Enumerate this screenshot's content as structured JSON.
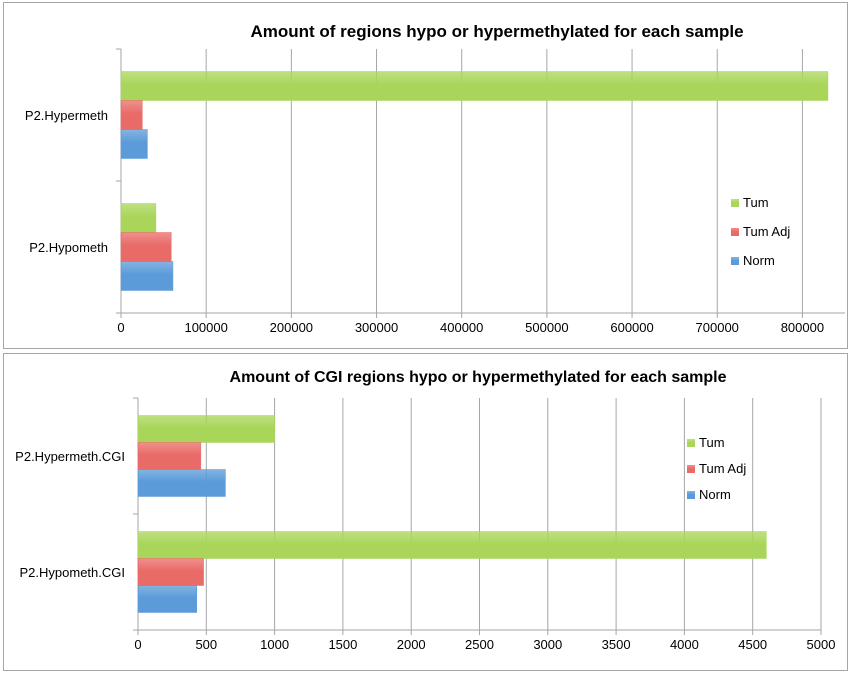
{
  "colors": {
    "Tum": "#a9d65a",
    "Tum Adj": "#e96b68",
    "Norm": "#5b9bd9",
    "grid": "#a6a6a6"
  },
  "chart_data": [
    {
      "type": "bar",
      "orientation": "horizontal",
      "title": "Amount of regions hypo or hypermethylated for each sample",
      "categories": [
        "P2.Hypermeth",
        "P2.Hypometh"
      ],
      "series": [
        {
          "name": "Tum",
          "values": [
            830000,
            41000
          ]
        },
        {
          "name": "Tum Adj",
          "values": [
            25000,
            59000
          ]
        },
        {
          "name": "Norm",
          "values": [
            31000,
            61000
          ]
        }
      ],
      "xlim": [
        0,
        850000
      ],
      "xticks": [
        "0",
        "100000",
        "200000",
        "300000",
        "400000",
        "500000",
        "600000",
        "700000",
        "800000"
      ],
      "grid": true,
      "legend": "right"
    },
    {
      "type": "bar",
      "orientation": "horizontal",
      "title": "Amount of CGI regions hypo or hypermethylated for each sample",
      "categories": [
        "P2.Hypermeth.CGI",
        "P2.Hypometh.CGI"
      ],
      "series": [
        {
          "name": "Tum",
          "values": [
            1000,
            4600
          ]
        },
        {
          "name": "Tum Adj",
          "values": [
            460,
            480
          ]
        },
        {
          "name": "Norm",
          "values": [
            640,
            430
          ]
        }
      ],
      "xlim": [
        0,
        5000
      ],
      "xticks": [
        "0",
        "500",
        "1000",
        "1500",
        "2000",
        "2500",
        "3000",
        "3500",
        "4000",
        "4500",
        "5000"
      ],
      "grid": true,
      "legend": "right"
    }
  ]
}
